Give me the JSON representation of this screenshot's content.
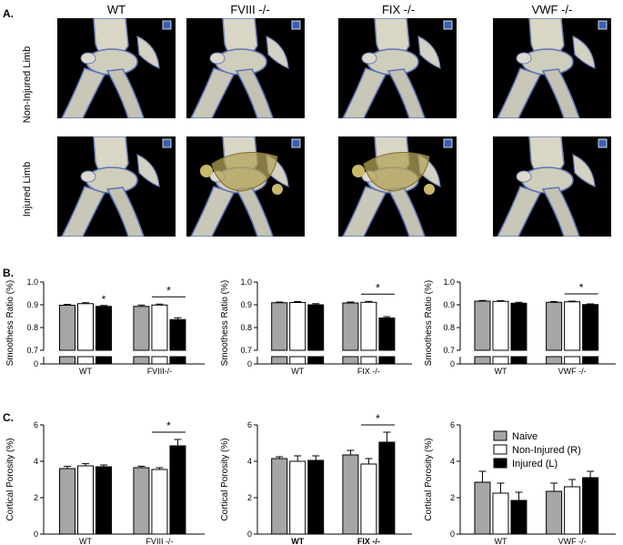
{
  "panel_a": {
    "section_label": "A.",
    "columns": [
      "WT",
      "FVIII -/-",
      "FIX -/-",
      "VWF -/-"
    ],
    "rows": [
      "Non-Injured Limb",
      "Injured Limb"
    ]
  },
  "panel_b_label": "B.",
  "panel_c_label": "C.",
  "colors": {
    "naive": "#a6a5a8",
    "non_injured": "#ffffff",
    "injured": "#000000"
  },
  "chart_data": [
    {
      "type": "bar",
      "panel": "B",
      "ylabel": "Smoothess Ratio (%)",
      "categories": [
        "WT",
        "FVIII-/-"
      ],
      "ylim": [
        0.7,
        1.0
      ],
      "yticks": [
        "0.7",
        "0.8",
        "0.9",
        "1.0"
      ],
      "broken_axis_tick": "0",
      "series": [
        {
          "name": "Naive",
          "values": [
            0.898,
            0.893
          ],
          "errors": [
            0.004,
            0.006
          ]
        },
        {
          "name": "Non-Injured (R)",
          "values": [
            0.905,
            0.899
          ],
          "errors": [
            0.004,
            0.004
          ]
        },
        {
          "name": "Injured (L)",
          "values": [
            0.893,
            0.835
          ],
          "errors": [
            0.004,
            0.008
          ]
        }
      ],
      "significance": [
        {
          "group": 0,
          "from": 2,
          "to": 2,
          "label": "*"
        },
        {
          "group": 1,
          "from": 1,
          "to": 2,
          "label": "*"
        }
      ]
    },
    {
      "type": "bar",
      "panel": "B",
      "ylabel": "Smoothess Ratio (%)",
      "categories": [
        "WT",
        "FIX -/-"
      ],
      "ylim": [
        0.7,
        1.0
      ],
      "yticks": [
        "0.7",
        "0.8",
        "0.9",
        "1.0"
      ],
      "broken_axis_tick": "0",
      "series": [
        {
          "name": "Naive",
          "values": [
            0.909,
            0.908
          ],
          "errors": [
            0.003,
            0.004
          ]
        },
        {
          "name": "Non-Injured (R)",
          "values": [
            0.91,
            0.911
          ],
          "errors": [
            0.004,
            0.004
          ]
        },
        {
          "name": "Injured (L)",
          "values": [
            0.9,
            0.842
          ],
          "errors": [
            0.005,
            0.006
          ]
        }
      ],
      "significance": [
        {
          "group": 1,
          "from": 1,
          "to": 2,
          "label": "*"
        }
      ]
    },
    {
      "type": "bar",
      "panel": "B",
      "ylabel": "Smoothess Ratio (%)",
      "categories": [
        "WT",
        "VWF -/-"
      ],
      "ylim": [
        0.7,
        1.0
      ],
      "yticks": [
        "0.7",
        "0.8",
        "0.9",
        "1.0"
      ],
      "broken_axis_tick": "0",
      "series": [
        {
          "name": "Naive",
          "values": [
            0.916,
            0.911
          ],
          "errors": [
            0.003,
            0.003
          ]
        },
        {
          "name": "Non-Injured (R)",
          "values": [
            0.915,
            0.913
          ],
          "errors": [
            0.003,
            0.003
          ]
        },
        {
          "name": "Injured (L)",
          "values": [
            0.907,
            0.901
          ],
          "errors": [
            0.004,
            0.003
          ]
        }
      ],
      "significance": [
        {
          "group": 1,
          "from": 1,
          "to": 2,
          "label": "*"
        }
      ]
    },
    {
      "type": "bar",
      "panel": "C",
      "ylabel": "Cortical Porosity (%)",
      "categories": [
        "WT",
        "FVIII -/-"
      ],
      "ylim": [
        0,
        6
      ],
      "yticks": [
        "0",
        "2",
        "4",
        "6"
      ],
      "series": [
        {
          "name": "Naive",
          "values": [
            3.6,
            3.65
          ],
          "errors": [
            0.12,
            0.08
          ]
        },
        {
          "name": "Non-Injured (R)",
          "values": [
            3.75,
            3.55
          ],
          "errors": [
            0.12,
            0.1
          ]
        },
        {
          "name": "Injured (L)",
          "values": [
            3.7,
            4.85
          ],
          "errors": [
            0.1,
            0.35
          ]
        }
      ],
      "significance": [
        {
          "group": 1,
          "from": 1,
          "to": 2,
          "label": "*"
        }
      ]
    },
    {
      "type": "bar",
      "panel": "C",
      "ylabel": "Cortical Porosity (%)",
      "categories": [
        "WT",
        "FIX -/-"
      ],
      "ylim": [
        0,
        6
      ],
      "yticks": [
        "0",
        "2",
        "4",
        "6"
      ],
      "series": [
        {
          "name": "Naive",
          "values": [
            4.15,
            4.35
          ],
          "errors": [
            0.1,
            0.25
          ]
        },
        {
          "name": "Non-Injured (R)",
          "values": [
            4.0,
            3.85
          ],
          "errors": [
            0.3,
            0.3
          ]
        },
        {
          "name": "Injured (L)",
          "values": [
            4.05,
            5.05
          ],
          "errors": [
            0.25,
            0.55
          ]
        }
      ],
      "significance": [
        {
          "group": 1,
          "from": 1,
          "to": 2,
          "label": "*"
        }
      ]
    },
    {
      "type": "bar",
      "panel": "C",
      "ylabel": "Cortical Porosity (%)",
      "categories": [
        "WT",
        "VWF -/-"
      ],
      "ylim": [
        0,
        6
      ],
      "yticks": [
        "0",
        "2",
        "4",
        "6"
      ],
      "legend": {
        "placement": "top-right",
        "entries": [
          "Naive",
          "Non-Injured (R)",
          "Injured (L)"
        ]
      },
      "series": [
        {
          "name": "Naive",
          "values": [
            2.85,
            2.35
          ],
          "errors": [
            0.6,
            0.45
          ]
        },
        {
          "name": "Non-Injured (R)",
          "values": [
            2.25,
            2.6
          ],
          "errors": [
            0.55,
            0.4
          ]
        },
        {
          "name": "Injured (L)",
          "values": [
            1.85,
            3.1
          ],
          "errors": [
            0.45,
            0.35
          ]
        }
      ],
      "significance": []
    }
  ]
}
